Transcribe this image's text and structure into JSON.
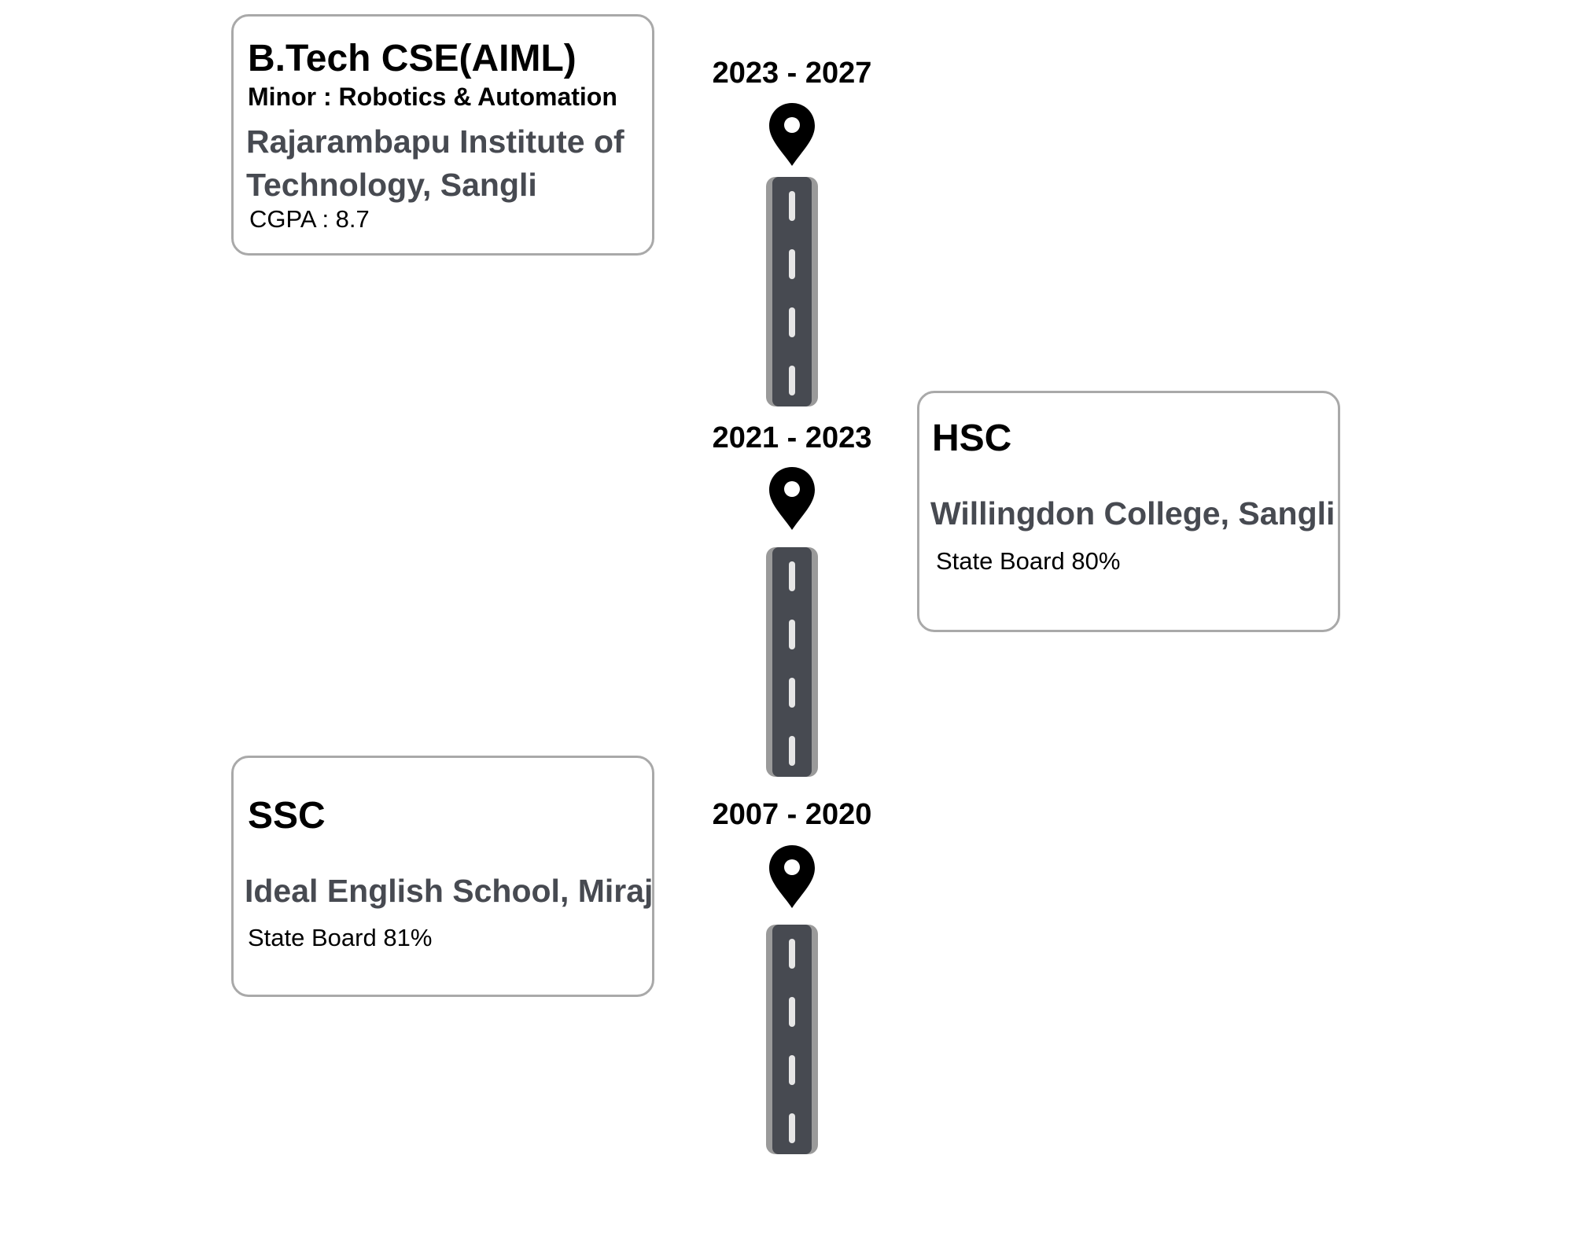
{
  "timeline": {
    "entries": [
      {
        "period": "2023 - 2027",
        "title": "B.Tech CSE(AIML)",
        "minor": "Minor : Robotics & Automation",
        "institution": "Rajarambapu Institute of Technology, Sangli",
        "score": "CGPA : 8.7"
      },
      {
        "period": "2021 - 2023",
        "title": "HSC",
        "institution": "Willingdon College, Sangli",
        "score": "State Board 80%"
      },
      {
        "period": "2007 - 2020",
        "title": "SSC",
        "institution": "Ideal English School, Miraj",
        "score": "State Board 81%"
      }
    ],
    "icons": {
      "marker": "location-pin-icon",
      "segment": "road-icon"
    },
    "colors": {
      "road_asphalt": "#474a51",
      "road_edge": "#9a9a9a",
      "road_dash": "#e6e6e6",
      "card_border": "#a9a9a9",
      "institution_text": "#474a51"
    }
  }
}
